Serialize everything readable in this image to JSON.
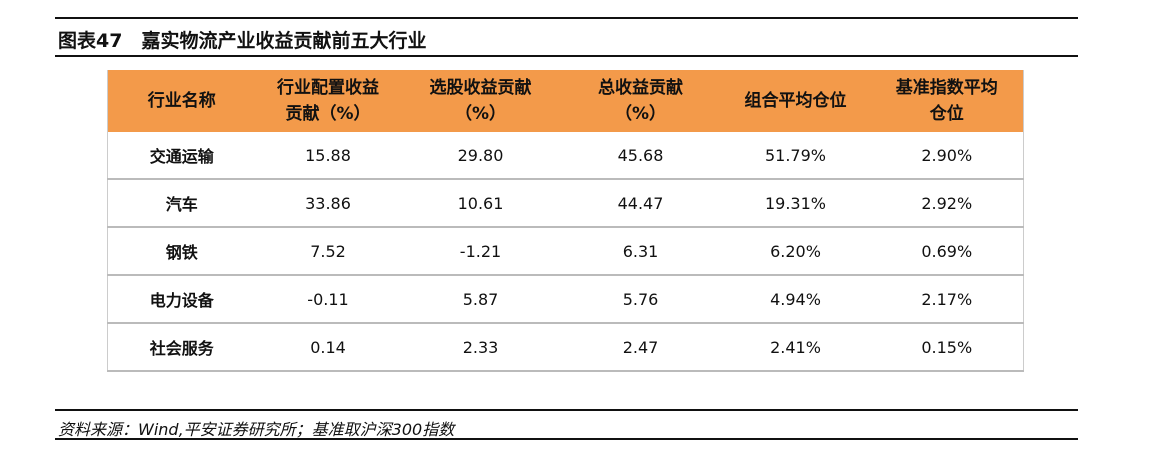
{
  "header": {
    "title": "图表47　嘉实物流产业收益贡献前五大行业"
  },
  "table": {
    "columns": [
      "行业名称",
      "行业配置收益\n贡献（%）",
      "选股收益贡献\n（%）",
      "总收益贡献\n（%）",
      "组合平均仓位",
      "基准指数平均\n仓位"
    ],
    "rows": [
      [
        "交通运输",
        "15.88",
        "29.80",
        "45.68",
        "51.79%",
        "2.90%"
      ],
      [
        "汽车",
        "33.86",
        "10.61",
        "44.47",
        "19.31%",
        "2.92%"
      ],
      [
        "钢铁",
        "7.52",
        "-1.21",
        "6.31",
        "6.20%",
        "0.69%"
      ],
      [
        "电力设备",
        "-0.11",
        "5.87",
        "5.76",
        "4.94%",
        "2.17%"
      ],
      [
        "社会服务",
        "0.14",
        "2.33",
        "2.47",
        "2.41%",
        "0.15%"
      ]
    ]
  },
  "footer": {
    "source": "资料来源：Wind,平安证券研究所；基准取沪深300指数"
  }
}
